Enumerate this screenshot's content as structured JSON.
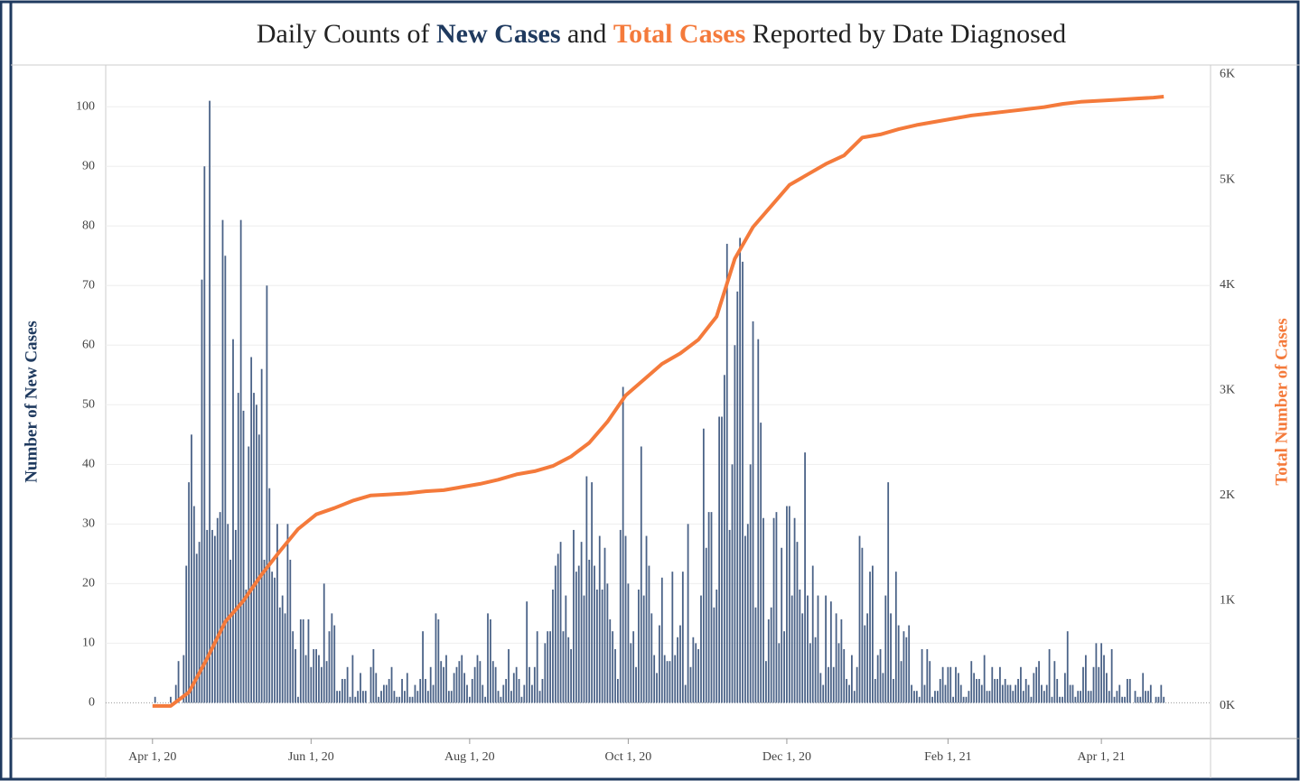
{
  "chart_data": {
    "type": "combo",
    "title": [
      "Daily Counts of ",
      "New Cases",
      " and ",
      "Total Cases",
      " Reported by Date Diagnosed"
    ],
    "ylabel": "Number of New Cases",
    "y2label": "Total Number of Cases",
    "xlim": [
      "2020-03-14",
      "2021-05-13"
    ],
    "xticks": [
      {
        "value": "2020-04-01",
        "label": "Apr 1, 20"
      },
      {
        "value": "2020-06-01",
        "label": "Jun 1, 20"
      },
      {
        "value": "2020-08-01",
        "label": "Aug 1, 20"
      },
      {
        "value": "2020-10-01",
        "label": "Oct 1, 20"
      },
      {
        "value": "2020-12-01",
        "label": "Dec 1, 20"
      },
      {
        "value": "2021-02-01",
        "label": "Feb 1, 21"
      },
      {
        "value": "2021-04-01",
        "label": "Apr 1, 21"
      }
    ],
    "ylim": [
      -6,
      107
    ],
    "yticks": [
      0,
      10,
      20,
      30,
      40,
      50,
      60,
      70,
      80,
      90,
      100
    ],
    "y2lim": [
      -310,
      6090
    ],
    "y2ticks": [
      {
        "value": 0,
        "label": "0K"
      },
      {
        "value": 1000,
        "label": "1K"
      },
      {
        "value": 2000,
        "label": "2K"
      },
      {
        "value": 3000,
        "label": "3K"
      },
      {
        "value": 4000,
        "label": "4K"
      },
      {
        "value": 5000,
        "label": "5K"
      },
      {
        "value": 6000,
        "label": "6K"
      }
    ],
    "grid": true,
    "series": [
      {
        "name": "New Cases",
        "type": "bar",
        "color": "#4a6287",
        "x": [
          "2020-04-01",
          "2020-04-02",
          "2020-04-03",
          "2020-04-04",
          "2020-04-05",
          "2020-04-06",
          "2020-04-07",
          "2020-04-08",
          "2020-04-09",
          "2020-04-10",
          "2020-04-11",
          "2020-04-12",
          "2020-04-13",
          "2020-04-14",
          "2020-04-15",
          "2020-04-16",
          "2020-04-17",
          "2020-04-18",
          "2020-04-19",
          "2020-04-20",
          "2020-04-21",
          "2020-04-22",
          "2020-04-23",
          "2020-04-24",
          "2020-04-25",
          "2020-04-26",
          "2020-04-27",
          "2020-04-28",
          "2020-04-29",
          "2020-04-30",
          "2020-05-01",
          "2020-05-02",
          "2020-05-03",
          "2020-05-04",
          "2020-05-05",
          "2020-05-06",
          "2020-05-07",
          "2020-05-08",
          "2020-05-09",
          "2020-05-10",
          "2020-05-11",
          "2020-05-12",
          "2020-05-13",
          "2020-05-14",
          "2020-05-15",
          "2020-05-16",
          "2020-05-17",
          "2020-05-18",
          "2020-05-19",
          "2020-05-20",
          "2020-05-21",
          "2020-05-22",
          "2020-05-23",
          "2020-05-24",
          "2020-05-25",
          "2020-05-26",
          "2020-05-27",
          "2020-05-28",
          "2020-05-29",
          "2020-05-30",
          "2020-05-31",
          "2020-06-01",
          "2020-06-02",
          "2020-06-03",
          "2020-06-04",
          "2020-06-05",
          "2020-06-06",
          "2020-06-07",
          "2020-06-08",
          "2020-06-09",
          "2020-06-10",
          "2020-06-11",
          "2020-06-12",
          "2020-06-13",
          "2020-06-14",
          "2020-06-15",
          "2020-06-16",
          "2020-06-17",
          "2020-06-18",
          "2020-06-19",
          "2020-06-20",
          "2020-06-21",
          "2020-06-22",
          "2020-06-23",
          "2020-06-24",
          "2020-06-25",
          "2020-06-26",
          "2020-06-27",
          "2020-06-28",
          "2020-06-29",
          "2020-06-30",
          "2020-07-01",
          "2020-07-02",
          "2020-07-03",
          "2020-07-04",
          "2020-07-05",
          "2020-07-06",
          "2020-07-07",
          "2020-07-08",
          "2020-07-09",
          "2020-07-10",
          "2020-07-11",
          "2020-07-12",
          "2020-07-13",
          "2020-07-14",
          "2020-07-15",
          "2020-07-16",
          "2020-07-17",
          "2020-07-18",
          "2020-07-19",
          "2020-07-20",
          "2020-07-21",
          "2020-07-22",
          "2020-07-23",
          "2020-07-24",
          "2020-07-25",
          "2020-07-26",
          "2020-07-27",
          "2020-07-28",
          "2020-07-29",
          "2020-07-30",
          "2020-07-31",
          "2020-08-01",
          "2020-08-02",
          "2020-08-03",
          "2020-08-04",
          "2020-08-05",
          "2020-08-06",
          "2020-08-07",
          "2020-08-08",
          "2020-08-09",
          "2020-08-10",
          "2020-08-11",
          "2020-08-12",
          "2020-08-13",
          "2020-08-14",
          "2020-08-15",
          "2020-08-16",
          "2020-08-17",
          "2020-08-18",
          "2020-08-19",
          "2020-08-20",
          "2020-08-21",
          "2020-08-22",
          "2020-08-23",
          "2020-08-24",
          "2020-08-25",
          "2020-08-26",
          "2020-08-27",
          "2020-08-28",
          "2020-08-29",
          "2020-08-30",
          "2020-08-31",
          "2020-09-01",
          "2020-09-02",
          "2020-09-03",
          "2020-09-04",
          "2020-09-05",
          "2020-09-06",
          "2020-09-07",
          "2020-09-08",
          "2020-09-09",
          "2020-09-10",
          "2020-09-11",
          "2020-09-12",
          "2020-09-13",
          "2020-09-14",
          "2020-09-15",
          "2020-09-16",
          "2020-09-17",
          "2020-09-18",
          "2020-09-19",
          "2020-09-20",
          "2020-09-21",
          "2020-09-22",
          "2020-09-23",
          "2020-09-24",
          "2020-09-25",
          "2020-09-26",
          "2020-09-27",
          "2020-09-28",
          "2020-09-29",
          "2020-09-30",
          "2020-10-01",
          "2020-10-02",
          "2020-10-03",
          "2020-10-04",
          "2020-10-05",
          "2020-10-06",
          "2020-10-07",
          "2020-10-08",
          "2020-10-09",
          "2020-10-10",
          "2020-10-11",
          "2020-10-12",
          "2020-10-13",
          "2020-10-14",
          "2020-10-15",
          "2020-10-16",
          "2020-10-17",
          "2020-10-18",
          "2020-10-19",
          "2020-10-20",
          "2020-10-21",
          "2020-10-22",
          "2020-10-23",
          "2020-10-24",
          "2020-10-25",
          "2020-10-26",
          "2020-10-27",
          "2020-10-28",
          "2020-10-29",
          "2020-10-30",
          "2020-10-31",
          "2020-11-01",
          "2020-11-02",
          "2020-11-03",
          "2020-11-04",
          "2020-11-05",
          "2020-11-06",
          "2020-11-07",
          "2020-11-08",
          "2020-11-09",
          "2020-11-10",
          "2020-11-11",
          "2020-11-12",
          "2020-11-13",
          "2020-11-14",
          "2020-11-15",
          "2020-11-16",
          "2020-11-17",
          "2020-11-18",
          "2020-11-19",
          "2020-11-20",
          "2020-11-21",
          "2020-11-22",
          "2020-11-23",
          "2020-11-24",
          "2020-11-25",
          "2020-11-26",
          "2020-11-27",
          "2020-11-28",
          "2020-11-29",
          "2020-11-30",
          "2020-12-01",
          "2020-12-02",
          "2020-12-03",
          "2020-12-04",
          "2020-12-05",
          "2020-12-06",
          "2020-12-07",
          "2020-12-08",
          "2020-12-09",
          "2020-12-10",
          "2020-12-11",
          "2020-12-12",
          "2020-12-13",
          "2020-12-14",
          "2020-12-15",
          "2020-12-16",
          "2020-12-17",
          "2020-12-18",
          "2020-12-19",
          "2020-12-20",
          "2020-12-21",
          "2020-12-22",
          "2020-12-23",
          "2020-12-24",
          "2020-12-25",
          "2020-12-26",
          "2020-12-27",
          "2020-12-28",
          "2020-12-29",
          "2020-12-30",
          "2020-12-31",
          "2021-01-01",
          "2021-01-02",
          "2021-01-03",
          "2021-01-04",
          "2021-01-05",
          "2021-01-06",
          "2021-01-07",
          "2021-01-08",
          "2021-01-09",
          "2021-01-10",
          "2021-01-11",
          "2021-01-12",
          "2021-01-13",
          "2021-01-14",
          "2021-01-15",
          "2021-01-16",
          "2021-01-17",
          "2021-01-18",
          "2021-01-19",
          "2021-01-20",
          "2021-01-21",
          "2021-01-22",
          "2021-01-23",
          "2021-01-24",
          "2021-01-25",
          "2021-01-26",
          "2021-01-27",
          "2021-01-28",
          "2021-01-29",
          "2021-01-30",
          "2021-01-31",
          "2021-02-01",
          "2021-02-02",
          "2021-02-03",
          "2021-02-04",
          "2021-02-05",
          "2021-02-06",
          "2021-02-07",
          "2021-02-08",
          "2021-02-09",
          "2021-02-10",
          "2021-02-11",
          "2021-02-12",
          "2021-02-13",
          "2021-02-14",
          "2021-02-15",
          "2021-02-16",
          "2021-02-17",
          "2021-02-18",
          "2021-02-19",
          "2021-02-20",
          "2021-02-21",
          "2021-02-22",
          "2021-02-23",
          "2021-02-24",
          "2021-02-25",
          "2021-02-26",
          "2021-02-27",
          "2021-02-28",
          "2021-03-01",
          "2021-03-02",
          "2021-03-03",
          "2021-03-04",
          "2021-03-05",
          "2021-03-06",
          "2021-03-07",
          "2021-03-08",
          "2021-03-09",
          "2021-03-10",
          "2021-03-11",
          "2021-03-12",
          "2021-03-13",
          "2021-03-14",
          "2021-03-15",
          "2021-03-16",
          "2021-03-17",
          "2021-03-18",
          "2021-03-19",
          "2021-03-20",
          "2021-03-21",
          "2021-03-22",
          "2021-03-23",
          "2021-03-24",
          "2021-03-25",
          "2021-03-26",
          "2021-03-27",
          "2021-03-28",
          "2021-03-29",
          "2021-03-30",
          "2021-03-31",
          "2021-04-01",
          "2021-04-02",
          "2021-04-03",
          "2021-04-04",
          "2021-04-05",
          "2021-04-06",
          "2021-04-07",
          "2021-04-08",
          "2021-04-09",
          "2021-04-10",
          "2021-04-11",
          "2021-04-12",
          "2021-04-13",
          "2021-04-14",
          "2021-04-15",
          "2021-04-16",
          "2021-04-17",
          "2021-04-18",
          "2021-04-19",
          "2021-04-20",
          "2021-04-21",
          "2021-04-22",
          "2021-04-23",
          "2021-04-24",
          "2021-04-25"
        ],
        "values": [
          0,
          1,
          0,
          0,
          0,
          0,
          0,
          1,
          0,
          3,
          7,
          0,
          8,
          23,
          37,
          45,
          33,
          25,
          27,
          71,
          90,
          29,
          101,
          29,
          28,
          31,
          32,
          81,
          75,
          30,
          24,
          61,
          29,
          52,
          81,
          49,
          19,
          43,
          58,
          52,
          50,
          45,
          56,
          24,
          70,
          36,
          22,
          21,
          30,
          16,
          18,
          15,
          30,
          24,
          12,
          9,
          1,
          14,
          14,
          8,
          14,
          6,
          9,
          9,
          8,
          6,
          20,
          7,
          12,
          15,
          13,
          2,
          2,
          4,
          4,
          6,
          1,
          8,
          1,
          2,
          5,
          2,
          2,
          0,
          6,
          9,
          5,
          1,
          2,
          3,
          3,
          4,
          6,
          2,
          1,
          1,
          4,
          2,
          5,
          1,
          1,
          3,
          2,
          4,
          12,
          4,
          2,
          6,
          3,
          15,
          14,
          7,
          6,
          8,
          2,
          2,
          5,
          6,
          7,
          8,
          5,
          3,
          1,
          4,
          6,
          8,
          7,
          3,
          1,
          15,
          14,
          7,
          6,
          2,
          1,
          3,
          4,
          9,
          2,
          5,
          6,
          4,
          1,
          3,
          17,
          6,
          3,
          6,
          12,
          2,
          4,
          10,
          12,
          12,
          19,
          23,
          25,
          27,
          12,
          18,
          11,
          9,
          29,
          22,
          23,
          27,
          18,
          38,
          24,
          37,
          23,
          19,
          28,
          19,
          26,
          20,
          14,
          12,
          9,
          4,
          29,
          53,
          28,
          20,
          10,
          12,
          6,
          19,
          43,
          18,
          28,
          23,
          15,
          8,
          5,
          13,
          21,
          8,
          7,
          7,
          22,
          8,
          11,
          13,
          22,
          3,
          30,
          6,
          11,
          10,
          9,
          18,
          46,
          26,
          32,
          32,
          16,
          19,
          48,
          48,
          55,
          77,
          29,
          40,
          60,
          69,
          78,
          74,
          28,
          30,
          40,
          64,
          16,
          61,
          47,
          31,
          7,
          14,
          16,
          31,
          32,
          10,
          26,
          12,
          33,
          33,
          18,
          31,
          27,
          19,
          15,
          42,
          18,
          10,
          23,
          11,
          18,
          5,
          3,
          18,
          6,
          17,
          6,
          15,
          10,
          14,
          9,
          4,
          3,
          8,
          2,
          6,
          28,
          26,
          13,
          15,
          22,
          23,
          4,
          8,
          9,
          5,
          18,
          37,
          15,
          4,
          22,
          13,
          7,
          12,
          11,
          13,
          3,
          2,
          2,
          1,
          9,
          3,
          9,
          7,
          1,
          2,
          2,
          4,
          6,
          3,
          6,
          6,
          1,
          6,
          5,
          3,
          1,
          1,
          2,
          7,
          5,
          4,
          4,
          3,
          8,
          2,
          2,
          6,
          4,
          4,
          6,
          3,
          4,
          3,
          3,
          2,
          3,
          4,
          6,
          2,
          4,
          3,
          1,
          5,
          6,
          7,
          3,
          2,
          3,
          9,
          1,
          7,
          4,
          1,
          1,
          5,
          12,
          3,
          3,
          1,
          2,
          2,
          6,
          8,
          2,
          2,
          6,
          10,
          6,
          10,
          8,
          5,
          2,
          9,
          1,
          2,
          3,
          1,
          1,
          4,
          4,
          0,
          2,
          1,
          1,
          5,
          2,
          2,
          3,
          0,
          1,
          1,
          3,
          1
        ]
      },
      {
        "name": "Total Cases",
        "type": "line",
        "axis": "y2",
        "color": "#f47a3b",
        "x": [
          "2020-04-01",
          "2020-04-08",
          "2020-04-15",
          "2020-04-22",
          "2020-04-29",
          "2020-05-06",
          "2020-05-13",
          "2020-05-20",
          "2020-05-27",
          "2020-06-03",
          "2020-06-10",
          "2020-06-17",
          "2020-06-24",
          "2020-07-01",
          "2020-07-08",
          "2020-07-15",
          "2020-07-22",
          "2020-07-29",
          "2020-08-05",
          "2020-08-12",
          "2020-08-19",
          "2020-08-26",
          "2020-09-02",
          "2020-09-09",
          "2020-09-16",
          "2020-09-23",
          "2020-09-30",
          "2020-10-07",
          "2020-10-14",
          "2020-10-21",
          "2020-10-28",
          "2020-11-04",
          "2020-11-11",
          "2020-11-18",
          "2020-11-25",
          "2020-12-02",
          "2020-12-09",
          "2020-12-16",
          "2020-12-23",
          "2020-12-30",
          "2021-01-06",
          "2021-01-13",
          "2021-01-20",
          "2021-01-27",
          "2021-02-03",
          "2021-02-10",
          "2021-02-17",
          "2021-02-24",
          "2021-03-03",
          "2021-03-10",
          "2021-03-17",
          "2021-03-24",
          "2021-03-31",
          "2021-04-07",
          "2021-04-14",
          "2021-04-21",
          "2021-04-25"
        ],
        "values": [
          0,
          0,
          130,
          450,
          800,
          1000,
          1250,
          1470,
          1680,
          1820,
          1880,
          1950,
          2000,
          2010,
          2020,
          2040,
          2050,
          2080,
          2110,
          2150,
          2200,
          2230,
          2280,
          2370,
          2500,
          2700,
          2950,
          3100,
          3250,
          3350,
          3480,
          3700,
          4250,
          4550,
          4750,
          4950,
          5050,
          5150,
          5230,
          5400,
          5430,
          5480,
          5520,
          5550,
          5580,
          5610,
          5630,
          5650,
          5670,
          5690,
          5720,
          5740,
          5750,
          5760,
          5770,
          5780,
          5790
        ]
      }
    ]
  }
}
